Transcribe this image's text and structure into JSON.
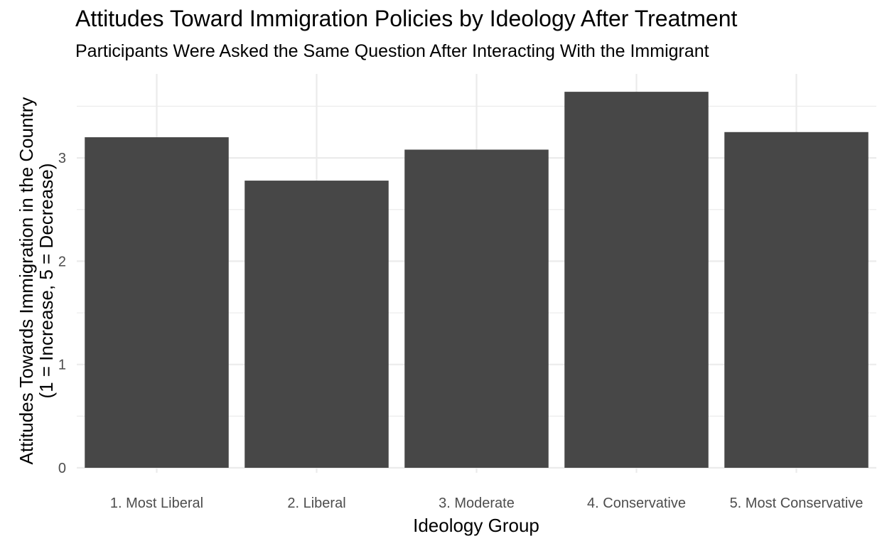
{
  "chart_data": {
    "type": "bar",
    "title": "Attitudes Toward Immigration Policies by Ideology After Treatment",
    "subtitle": "Participants Were Asked the Same Question After Interacting With the Immigrant",
    "xlabel": "Ideology Group",
    "ylabel_line1": "Attitudes Towards Immigration in the Country",
    "ylabel_line2": "(1 = Increase, 5 = Decrease)",
    "categories": [
      "1. Most Liberal",
      "2. Liberal",
      "3. Moderate",
      "4. Conservative",
      "5. Most Conservative"
    ],
    "values": [
      3.2,
      2.78,
      3.08,
      3.64,
      3.25
    ],
    "ylim": [
      0,
      3.5
    ],
    "yticks": [
      0,
      1,
      2,
      3
    ],
    "grid": true,
    "bar_color": "#474747",
    "grid_color": "#ebebeb"
  }
}
